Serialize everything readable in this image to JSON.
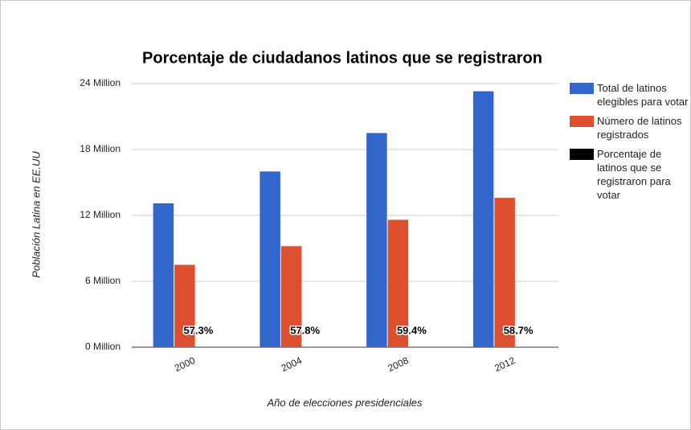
{
  "chart_data": {
    "type": "bar",
    "title": "Porcentaje de ciudadanos latinos que se registraron",
    "x_label": "Año de elecciones presidenciales",
    "y_label": "Población Latina en EE.UU",
    "categories": [
      "2000",
      "2004",
      "2008",
      "2012"
    ],
    "series": [
      {
        "name": "Total de latinos elegibles para votar",
        "color": "#3366cc",
        "values": [
          13100000,
          16000000,
          19500000,
          23300000
        ]
      },
      {
        "name": "Número de latinos registrados",
        "color": "#dc5030",
        "values": [
          7500000,
          9200000,
          11600000,
          13600000
        ]
      },
      {
        "name": "Porcentaje de latinos que se registraron para votar",
        "color": "#000000",
        "values": [
          57.3,
          57.8,
          59.4,
          58.7
        ],
        "value_labels": [
          "57.3%",
          "57.8%",
          "59.4%",
          "58.7%"
        ]
      }
    ],
    "ylim": [
      0,
      24000000
    ],
    "yticks": [
      {
        "value": 0,
        "label": "0 Million"
      },
      {
        "value": 6000000,
        "label": "6 Million"
      },
      {
        "value": 12000000,
        "label": "12 Million"
      },
      {
        "value": 18000000,
        "label": "18 Million"
      },
      {
        "value": 24000000,
        "label": "24 Million"
      }
    ],
    "grid": true,
    "legend": "right"
  }
}
